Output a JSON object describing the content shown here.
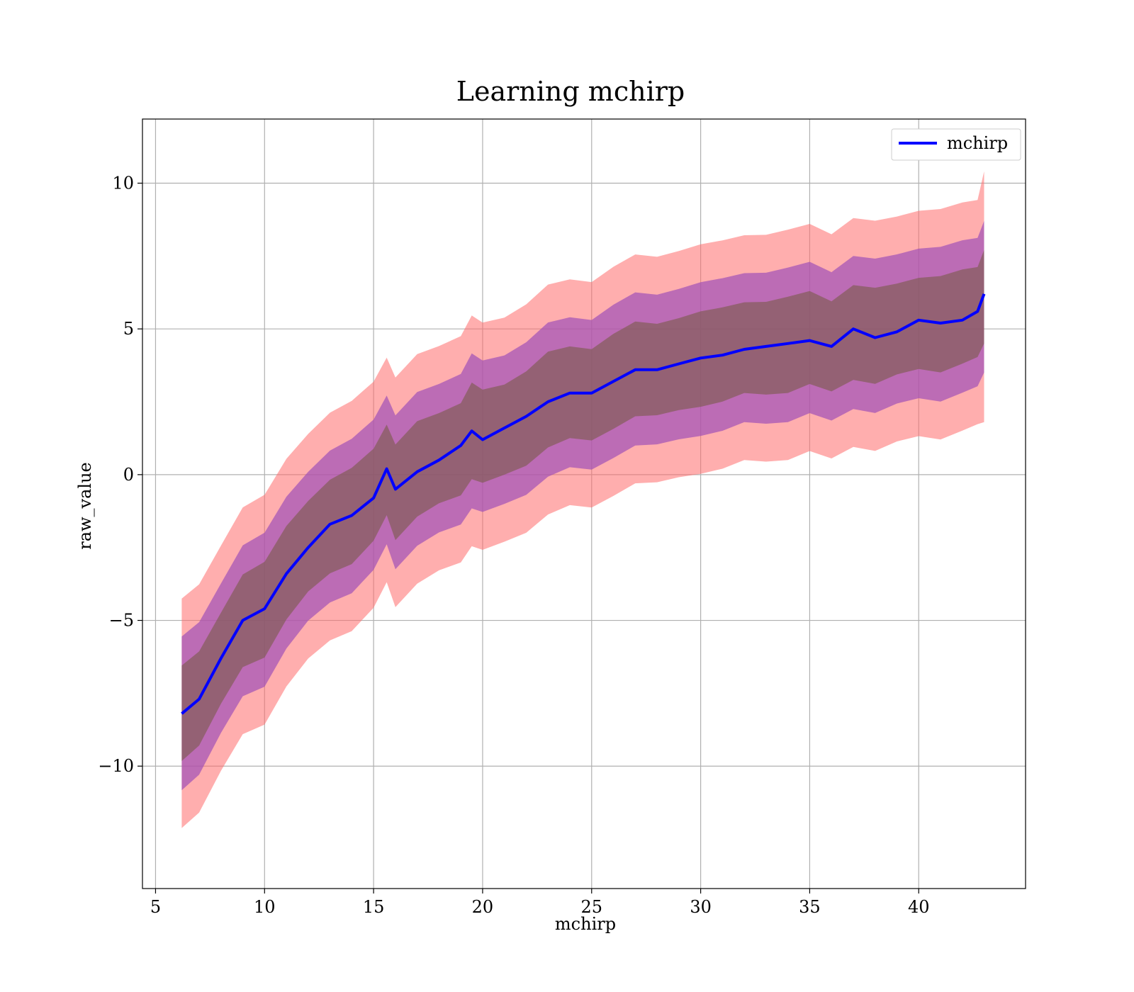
{
  "chart_data": {
    "type": "line",
    "title": "Learning mchirp",
    "xlabel": "mchirp",
    "ylabel": "raw_value",
    "xlim": [
      4.4,
      44.9
    ],
    "ylim": [
      -14.2,
      12.2
    ],
    "xticks": [
      5,
      10,
      15,
      20,
      25,
      30,
      35,
      40
    ],
    "xtick_labels": [
      "5",
      "10",
      "15",
      "20",
      "25",
      "30",
      "35",
      "40"
    ],
    "yticks": [
      -10,
      -5,
      0,
      5,
      10
    ],
    "ytick_labels": [
      "−10",
      "−5",
      "0",
      "5",
      "10"
    ],
    "grid": true,
    "legend": {
      "position": "top-right",
      "entries": [
        "mchirp"
      ]
    },
    "colors": {
      "line": "#0000ff",
      "band_outer": "#ff6b6b",
      "band_middle": "#a050b8",
      "band_inner": "#7a5a4a",
      "grid": "#b0b0b0"
    },
    "series": [
      {
        "name": "mchirp",
        "x": [
          6.2,
          7.0,
          8.0,
          9.0,
          10.0,
          11.0,
          12.0,
          13.0,
          14.0,
          15.0,
          15.6,
          16.0,
          17.0,
          18.0,
          19.0,
          19.5,
          20.0,
          21.0,
          22.0,
          23.0,
          24.0,
          25.0,
          26.0,
          27.0,
          28.0,
          29.0,
          30.0,
          31.0,
          32.0,
          33.0,
          34.0,
          35.0,
          36.0,
          37.0,
          38.0,
          39.0,
          40.0,
          41.0,
          42.0,
          42.7,
          43.0
        ],
        "y": [
          -8.2,
          -7.7,
          -6.3,
          -5.0,
          -4.6,
          -3.4,
          -2.5,
          -1.7,
          -1.4,
          -0.8,
          0.2,
          -0.5,
          0.1,
          0.5,
          1.0,
          1.5,
          1.2,
          1.6,
          2.0,
          2.5,
          2.8,
          2.8,
          3.2,
          3.6,
          3.6,
          3.8,
          4.0,
          4.1,
          4.3,
          4.4,
          4.5,
          4.6,
          4.4,
          5.0,
          4.7,
          4.9,
          5.3,
          5.2,
          5.3,
          5.6,
          6.2
        ],
        "band_inner": [
          1.6,
          1.6,
          1.6,
          1.6,
          1.6,
          1.6,
          1.6,
          1.6,
          1.6,
          1.6,
          1.6,
          1.6,
          1.6,
          1.6,
          1.6,
          1.6,
          1.6,
          1.6,
          1.6,
          1.6,
          1.6,
          1.6,
          1.6,
          1.6,
          1.6,
          1.6,
          1.6,
          1.6,
          1.6,
          1.6,
          1.6,
          1.6,
          1.6,
          1.6,
          1.6,
          1.6,
          1.6,
          1.6,
          1.6,
          1.6,
          1.6
        ],
        "band_middle": [
          2.6,
          2.6,
          2.6,
          2.6,
          2.6,
          2.6,
          2.6,
          2.6,
          2.6,
          2.6,
          2.6,
          2.6,
          2.6,
          2.6,
          2.6,
          2.6,
          2.6,
          2.6,
          2.6,
          2.6,
          2.6,
          2.6,
          2.6,
          2.6,
          2.6,
          2.6,
          2.6,
          2.6,
          2.6,
          2.6,
          2.6,
          2.6,
          2.6,
          2.6,
          2.6,
          2.6,
          2.6,
          2.6,
          2.6,
          2.6,
          2.6
        ],
        "band_outer": [
          3.9,
          3.9,
          3.9,
          3.9,
          3.9,
          3.9,
          3.9,
          3.9,
          3.9,
          3.9,
          3.9,
          3.9,
          3.9,
          3.9,
          3.9,
          3.9,
          3.9,
          3.9,
          3.9,
          3.9,
          3.9,
          3.9,
          3.9,
          3.9,
          3.9,
          3.9,
          3.9,
          3.9,
          3.9,
          3.9,
          3.9,
          3.9,
          3.9,
          3.9,
          3.9,
          3.9,
          3.9,
          3.9,
          3.9,
          3.9,
          4.3
        ]
      }
    ]
  }
}
